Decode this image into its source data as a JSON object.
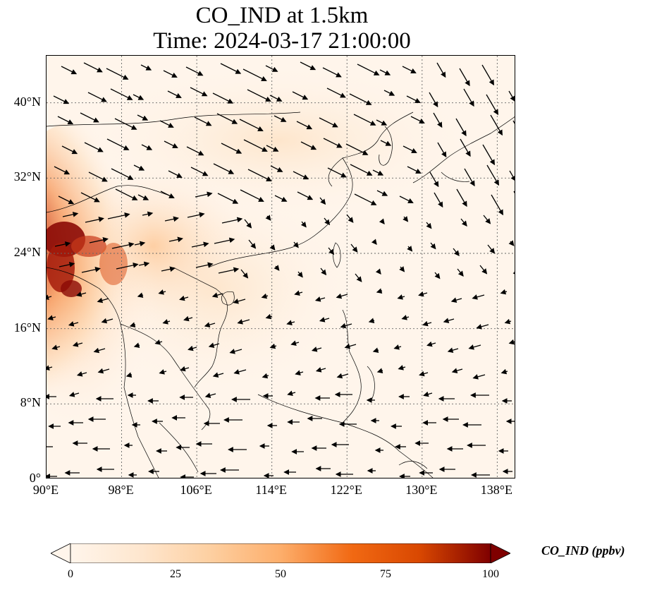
{
  "title": {
    "line1": "CO_IND at 1.5km",
    "line2": "Time: 2024-03-17 21:00:00"
  },
  "map": {
    "projection": "PlateCarree",
    "lon_range": [
      90,
      140
    ],
    "lat_range": [
      0,
      45
    ],
    "gridlines": "dotted",
    "lat_ticks": [
      {
        "value": 40,
        "label": "40°N"
      },
      {
        "value": 32,
        "label": "32°N"
      },
      {
        "value": 24,
        "label": "24°N"
      },
      {
        "value": 16,
        "label": "16°N"
      },
      {
        "value": 8,
        "label": "8°N"
      },
      {
        "value": 0,
        "label": "0°"
      }
    ],
    "lon_ticks": [
      {
        "value": 90,
        "label": "90°E"
      },
      {
        "value": 98,
        "label": "98°E"
      },
      {
        "value": 106,
        "label": "106°E"
      },
      {
        "value": 114,
        "label": "114°E"
      },
      {
        "value": 122,
        "label": "122°E"
      },
      {
        "value": 130,
        "label": "130°E"
      },
      {
        "value": 138,
        "label": "138°E"
      }
    ],
    "field": "CO_IND",
    "high_concentration_region": "Myanmar / northeast India / Yunnan",
    "wind_vectors": "quiver arrows"
  },
  "colorbar": {
    "label": "CO_IND (ppbv)",
    "range": [
      0,
      100
    ],
    "extend": "both",
    "colormap": [
      "#fff5eb",
      "#fdd0a2",
      "#fdae6b",
      "#f16913",
      "#d94801",
      "#a63603",
      "#7f0000"
    ],
    "ticks": [
      {
        "value": 0,
        "label": "0"
      },
      {
        "value": 25,
        "label": "25"
      },
      {
        "value": 50,
        "label": "50"
      },
      {
        "value": 75,
        "label": "75"
      },
      {
        "value": 100,
        "label": "100"
      }
    ]
  }
}
